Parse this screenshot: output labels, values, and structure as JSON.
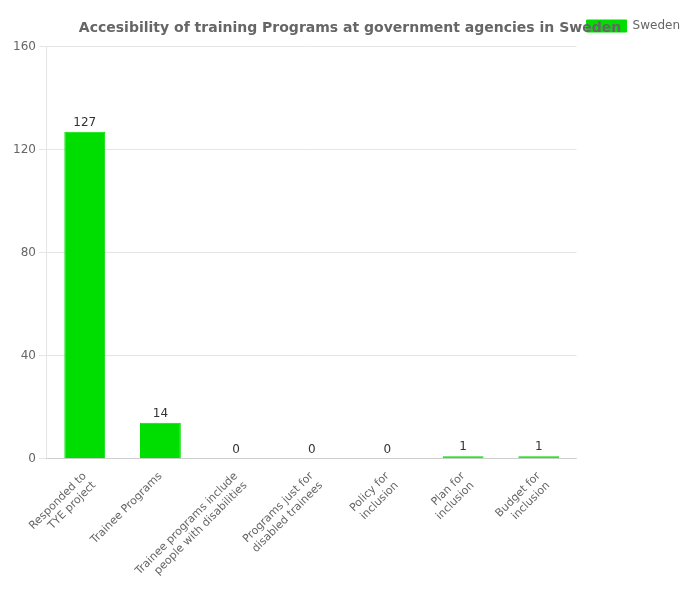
{
  "chart_data": {
    "type": "bar",
    "title": "Accesibility of training Programs at government agencies in Sweden",
    "categories": [
      "Responded to\nTYE project",
      "Trainee Programs",
      "Trainee programs include\npeople with disabilities",
      "Programs just for\ndisabled trainees",
      "Policy for\ninclusion",
      "Plan for\ninclusion",
      "Budget for\ninclusion"
    ],
    "series": [
      {
        "name": "Sweden",
        "color": "#00dd00",
        "values": [
          127,
          14,
          0,
          0,
          0,
          1,
          1
        ]
      }
    ],
    "ylim": [
      0,
      160
    ],
    "yticks": [
      0,
      40,
      80,
      120,
      160
    ],
    "grid": true,
    "legend": "right",
    "data_labels": true
  }
}
